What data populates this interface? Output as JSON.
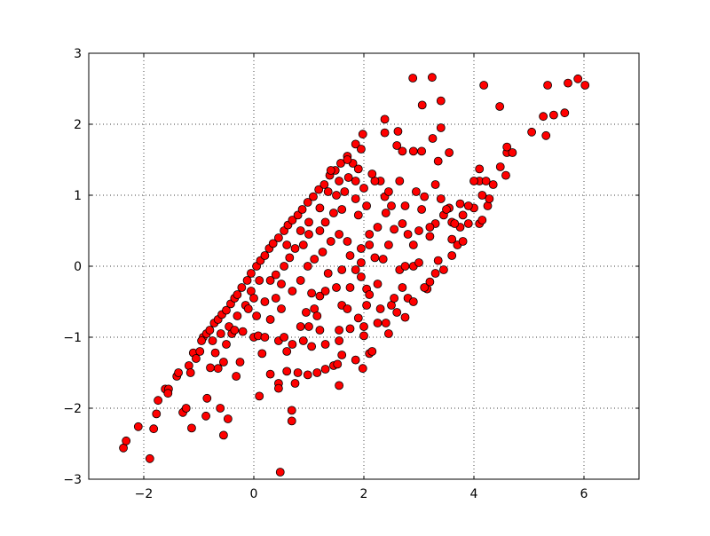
{
  "chart_data": {
    "type": "scatter",
    "title": "",
    "xlabel": "",
    "ylabel": "",
    "xlim": [
      -3,
      7
    ],
    "ylim": [
      -3,
      3
    ],
    "grid": true,
    "xticks": [
      -2,
      0,
      2,
      4,
      6
    ],
    "yticks": [
      -3,
      -2,
      -1,
      0,
      1,
      2,
      3
    ],
    "xtick_labels": [
      "−2",
      "0",
      "2",
      "4",
      "6"
    ],
    "ytick_labels": [
      "−3",
      "−2",
      "−1",
      "0",
      "1",
      "2",
      "3"
    ],
    "marker_color": "#ff0000",
    "marker_edge_color": "#000000",
    "series": [
      {
        "points": [
          [
            -2.37,
            -2.56
          ],
          [
            -2.32,
            -2.46
          ],
          [
            -2.1,
            -2.26
          ],
          [
            -1.89,
            -2.71
          ],
          [
            -1.82,
            -2.29
          ],
          [
            -1.77,
            -2.08
          ],
          [
            -1.74,
            -1.89
          ],
          [
            -1.61,
            -1.73
          ],
          [
            -1.55,
            -1.73
          ],
          [
            -1.56,
            -1.79
          ],
          [
            -1.4,
            -1.55
          ],
          [
            -1.37,
            -1.5
          ],
          [
            -1.29,
            -2.06
          ],
          [
            -1.23,
            -2.0
          ],
          [
            -1.13,
            -2.28
          ],
          [
            -1.18,
            -1.4
          ],
          [
            -1.1,
            -1.22
          ],
          [
            -1.05,
            -1.3
          ],
          [
            -1.15,
            -1.5
          ],
          [
            -0.98,
            -1.2
          ],
          [
            -0.87,
            -2.11
          ],
          [
            -0.85,
            -1.86
          ],
          [
            -0.61,
            -2.0
          ],
          [
            -0.55,
            -2.38
          ],
          [
            -0.47,
            -2.15
          ],
          [
            -0.32,
            -1.55
          ],
          [
            -0.79,
            -1.43
          ],
          [
            -0.65,
            -1.44
          ],
          [
            -0.92,
            -1.0
          ],
          [
            -0.86,
            -0.95
          ],
          [
            -0.8,
            -0.9
          ],
          [
            -0.72,
            -0.8
          ],
          [
            -0.65,
            -0.75
          ],
          [
            -0.58,
            -0.68
          ],
          [
            -0.5,
            -0.62
          ],
          [
            -0.42,
            -0.53
          ],
          [
            -0.35,
            -0.45
          ],
          [
            -0.3,
            -0.4
          ],
          [
            -0.22,
            -0.3
          ],
          [
            -0.12,
            -0.2
          ],
          [
            -0.05,
            -0.1
          ],
          [
            0.05,
            0.0
          ],
          [
            0.12,
            0.08
          ],
          [
            0.2,
            0.15
          ],
          [
            0.28,
            0.25
          ],
          [
            0.35,
            0.32
          ],
          [
            0.45,
            0.4
          ],
          [
            0.55,
            0.5
          ],
          [
            0.62,
            0.58
          ],
          [
            0.7,
            0.65
          ],
          [
            0.8,
            0.72
          ],
          [
            0.88,
            0.8
          ],
          [
            0.98,
            0.9
          ],
          [
            1.08,
            0.98
          ],
          [
            1.18,
            1.08
          ],
          [
            1.28,
            1.15
          ],
          [
            1.38,
            1.28
          ],
          [
            1.48,
            1.35
          ],
          [
            1.58,
            1.45
          ],
          [
            1.7,
            1.55
          ],
          [
            1.85,
            1.72
          ],
          [
            1.98,
            1.86
          ],
          [
            -0.95,
            -1.05
          ],
          [
            -0.75,
            -1.05
          ],
          [
            -0.6,
            -0.95
          ],
          [
            -0.45,
            -0.85
          ],
          [
            -0.3,
            -0.7
          ],
          [
            -0.15,
            -0.55
          ],
          [
            -0.05,
            -0.35
          ],
          [
            0.1,
            -0.2
          ],
          [
            -0.4,
            -0.95
          ],
          [
            -0.25,
            -1.35
          ],
          [
            -0.55,
            -1.35
          ],
          [
            -0.7,
            -1.22
          ],
          [
            -0.2,
            -0.92
          ],
          [
            0.05,
            -0.7
          ],
          [
            0.0,
            -1.0
          ],
          [
            0.08,
            -0.98
          ],
          [
            0.2,
            -1.0
          ],
          [
            0.15,
            -1.23
          ],
          [
            0.3,
            -0.75
          ],
          [
            0.4,
            -0.45
          ],
          [
            0.5,
            -0.6
          ],
          [
            0.45,
            -1.05
          ],
          [
            0.55,
            -1.0
          ],
          [
            0.6,
            -1.2
          ],
          [
            0.7,
            -1.1
          ],
          [
            0.45,
            -1.65
          ],
          [
            0.48,
            -2.9
          ],
          [
            0.1,
            -1.83
          ],
          [
            0.69,
            -2.03
          ],
          [
            0.69,
            -2.18
          ],
          [
            0.3,
            -1.52
          ],
          [
            0.6,
            -1.48
          ],
          [
            0.8,
            -1.5
          ],
          [
            0.98,
            -1.53
          ],
          [
            0.75,
            -1.65
          ],
          [
            0.45,
            -1.72
          ],
          [
            0.9,
            -1.05
          ],
          [
            1.05,
            -1.13
          ],
          [
            1.15,
            -1.5
          ],
          [
            1.3,
            -1.45
          ],
          [
            1.45,
            -1.4
          ],
          [
            1.55,
            -1.68
          ],
          [
            1.52,
            -1.38
          ],
          [
            1.85,
            -1.32
          ],
          [
            1.98,
            -1.44
          ],
          [
            2.1,
            -1.23
          ],
          [
            2.15,
            -1.2
          ],
          [
            1.2,
            -0.9
          ],
          [
            1.0,
            -0.85
          ],
          [
            0.95,
            -0.65
          ],
          [
            1.1,
            -0.6
          ],
          [
            1.2,
            -0.42
          ],
          [
            1.05,
            -0.38
          ],
          [
            1.35,
            -0.1
          ],
          [
            1.5,
            -0.3
          ],
          [
            1.6,
            -0.55
          ],
          [
            1.7,
            -0.6
          ],
          [
            1.55,
            -0.9
          ],
          [
            1.55,
            -1.05
          ],
          [
            1.75,
            -0.88
          ],
          [
            1.9,
            -0.73
          ],
          [
            2.0,
            -0.85
          ],
          [
            2.0,
            -0.98
          ],
          [
            2.05,
            -0.55
          ],
          [
            2.05,
            -0.32
          ],
          [
            2.25,
            -0.8
          ],
          [
            2.4,
            -0.8
          ],
          [
            2.5,
            -0.55
          ],
          [
            2.6,
            -0.65
          ],
          [
            2.75,
            -0.72
          ],
          [
            2.8,
            -0.45
          ],
          [
            2.9,
            -0.5
          ],
          [
            2.7,
            -0.3
          ],
          [
            2.65,
            -0.05
          ],
          [
            2.75,
            0.0
          ],
          [
            2.9,
            0.0
          ],
          [
            3.0,
            0.05
          ],
          [
            3.15,
            -0.32
          ],
          [
            3.2,
            -0.22
          ],
          [
            3.3,
            -0.1
          ],
          [
            3.35,
            0.08
          ],
          [
            3.45,
            -0.05
          ],
          [
            3.6,
            0.15
          ],
          [
            3.7,
            0.3
          ],
          [
            3.8,
            0.35
          ],
          [
            3.75,
            0.55
          ],
          [
            3.6,
            0.62
          ],
          [
            3.9,
            0.6
          ],
          [
            4.0,
            0.82
          ],
          [
            4.1,
            0.6
          ],
          [
            4.15,
            0.65
          ],
          [
            4.25,
            0.85
          ],
          [
            4.28,
            0.95
          ],
          [
            4.15,
            1.0
          ],
          [
            4.1,
            1.2
          ],
          [
            4.0,
            1.2
          ],
          [
            4.22,
            1.2
          ],
          [
            4.35,
            1.15
          ],
          [
            4.1,
            1.37
          ],
          [
            4.48,
            1.4
          ],
          [
            4.58,
            1.28
          ],
          [
            4.6,
            1.6
          ],
          [
            4.6,
            1.68
          ],
          [
            4.7,
            1.6
          ],
          [
            3.9,
            0.85
          ],
          [
            3.75,
            0.88
          ],
          [
            3.55,
            0.82
          ],
          [
            3.45,
            0.72
          ],
          [
            3.3,
            0.6
          ],
          [
            3.2,
            0.42
          ],
          [
            3.0,
            0.5
          ],
          [
            2.9,
            0.3
          ],
          [
            2.8,
            0.45
          ],
          [
            2.7,
            0.6
          ],
          [
            2.55,
            0.52
          ],
          [
            2.45,
            0.3
          ],
          [
            2.35,
            0.1
          ],
          [
            2.2,
            0.12
          ],
          [
            2.1,
            0.3
          ],
          [
            2.1,
            0.45
          ],
          [
            2.25,
            0.55
          ],
          [
            2.4,
            0.75
          ],
          [
            2.5,
            0.85
          ],
          [
            2.38,
            0.98
          ],
          [
            2.45,
            1.05
          ],
          [
            2.3,
            1.2
          ],
          [
            2.2,
            1.2
          ],
          [
            2.15,
            1.3
          ],
          [
            2.65,
            1.2
          ],
          [
            2.75,
            0.85
          ],
          [
            2.95,
            1.05
          ],
          [
            3.05,
            0.8
          ],
          [
            3.1,
            0.98
          ],
          [
            3.3,
            1.15
          ],
          [
            3.2,
            0.55
          ],
          [
            3.4,
            0.95
          ],
          [
            3.5,
            0.8
          ],
          [
            3.65,
            0.6
          ],
          [
            2.6,
            1.7
          ],
          [
            2.7,
            1.62
          ],
          [
            2.38,
            1.88
          ],
          [
            2.38,
            2.07
          ],
          [
            2.62,
            1.9
          ],
          [
            2.9,
            1.62
          ],
          [
            3.05,
            1.62
          ],
          [
            3.25,
            1.8
          ],
          [
            3.35,
            1.48
          ],
          [
            3.4,
            1.95
          ],
          [
            3.55,
            1.6
          ],
          [
            2.89,
            2.65
          ],
          [
            3.24,
            2.66
          ],
          [
            3.4,
            2.33
          ],
          [
            3.06,
            2.27
          ],
          [
            4.18,
            2.55
          ],
          [
            4.47,
            2.25
          ],
          [
            5.34,
            2.55
          ],
          [
            5.71,
            2.58
          ],
          [
            5.89,
            2.64
          ],
          [
            6.02,
            2.55
          ],
          [
            5.26,
            2.11
          ],
          [
            5.45,
            2.13
          ],
          [
            5.65,
            2.16
          ],
          [
            5.05,
            1.89
          ],
          [
            5.31,
            1.84
          ],
          [
            1.8,
            1.45
          ],
          [
            1.9,
            1.37
          ],
          [
            1.72,
            1.25
          ],
          [
            1.55,
            1.2
          ],
          [
            1.4,
            1.35
          ],
          [
            1.35,
            1.05
          ],
          [
            1.5,
            1.0
          ],
          [
            1.6,
            0.8
          ],
          [
            1.45,
            0.75
          ],
          [
            1.3,
            0.62
          ],
          [
            1.2,
            0.5
          ],
          [
            1.0,
            0.45
          ],
          [
            0.9,
            0.3
          ],
          [
            0.75,
            0.25
          ],
          [
            0.65,
            0.12
          ],
          [
            0.55,
            0.0
          ],
          [
            0.4,
            -0.12
          ],
          [
            0.5,
            -0.25
          ],
          [
            0.7,
            -0.35
          ],
          [
            0.85,
            -0.2
          ],
          [
            0.98,
            0.0
          ],
          [
            1.1,
            0.1
          ],
          [
            1.25,
            0.2
          ],
          [
            1.4,
            0.35
          ],
          [
            1.55,
            0.45
          ],
          [
            1.7,
            0.35
          ],
          [
            1.75,
            0.15
          ],
          [
            1.95,
            0.25
          ],
          [
            1.95,
            0.05
          ],
          [
            1.85,
            -0.05
          ],
          [
            1.75,
            -0.3
          ],
          [
            1.95,
            -0.15
          ],
          [
            2.1,
            -0.4
          ],
          [
            2.25,
            -0.25
          ],
          [
            1.9,
            0.72
          ],
          [
            2.05,
            0.85
          ],
          [
            1.85,
            0.95
          ],
          [
            2.0,
            1.1
          ],
          [
            1.85,
            1.2
          ],
          [
            1.65,
            1.05
          ],
          [
            1.2,
            0.82
          ],
          [
            1.0,
            0.62
          ],
          [
            0.85,
            0.5
          ],
          [
            0.6,
            0.3
          ],
          [
            1.95,
            1.65
          ],
          [
            1.7,
            1.5
          ],
          [
            1.6,
            -0.05
          ],
          [
            1.3,
            -0.35
          ],
          [
            1.15,
            -0.7
          ],
          [
            0.85,
            -0.85
          ],
          [
            1.3,
            -1.1
          ],
          [
            1.6,
            -1.25
          ],
          [
            0.3,
            -0.2
          ],
          [
            0.2,
            -0.5
          ],
          [
            -0.1,
            -0.6
          ],
          [
            0.0,
            -0.45
          ],
          [
            -0.35,
            -0.9
          ],
          [
            -0.5,
            -1.1
          ],
          [
            2.3,
            -0.6
          ],
          [
            2.45,
            -0.95
          ],
          [
            2.55,
            -0.45
          ],
          [
            3.1,
            -0.3
          ],
          [
            3.6,
            0.38
          ],
          [
            3.8,
            0.72
          ]
        ]
      }
    ]
  }
}
